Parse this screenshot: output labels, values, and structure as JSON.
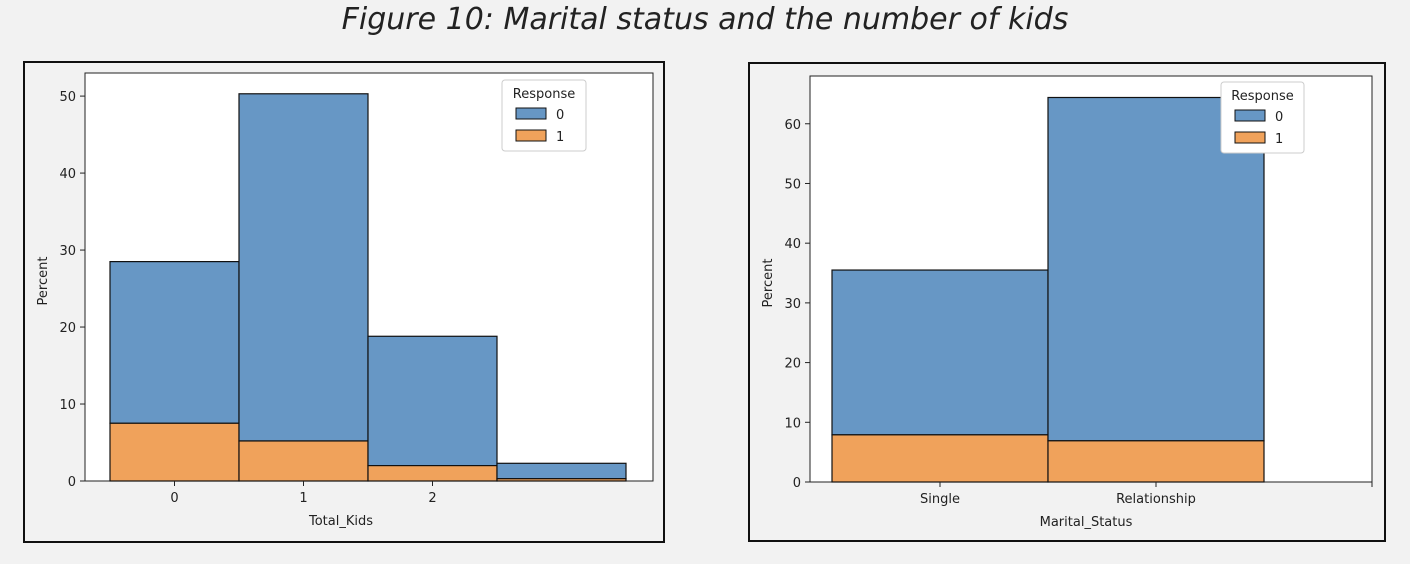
{
  "figure_title": "Figure 10: Marital status and the number of kids",
  "colors": {
    "response_0": "#6797c5",
    "response_1": "#f0a25b",
    "edge": "#111111"
  },
  "chart_data": [
    {
      "type": "bar",
      "stacked": true,
      "xlabel": "Total_Kids",
      "ylabel": "Percent",
      "categories": [
        "0",
        "1",
        "2",
        ""
      ],
      "xticks": [
        "0",
        "1",
        "2"
      ],
      "ylim": [
        0,
        53
      ],
      "yticks": [
        0,
        10,
        20,
        30,
        40,
        50
      ],
      "legend": {
        "title": "Response",
        "placement": "top-right",
        "entries": [
          "0",
          "1"
        ]
      },
      "series": [
        {
          "name": "0",
          "values": [
            21.0,
            45.1,
            16.8,
            2.0
          ]
        },
        {
          "name": "1",
          "values": [
            7.5,
            5.2,
            2.0,
            0.3
          ]
        }
      ],
      "totals": [
        28.5,
        50.3,
        18.8,
        2.3
      ]
    },
    {
      "type": "bar",
      "stacked": true,
      "xlabel": "Marital_Status",
      "ylabel": "Percent",
      "categories": [
        "Single",
        "Relationship"
      ],
      "xticks": [
        "Single",
        "Relationship"
      ],
      "ylim": [
        0,
        68
      ],
      "yticks": [
        0,
        10,
        20,
        30,
        40,
        50,
        60
      ],
      "legend": {
        "title": "Response",
        "placement": "top-right",
        "entries": [
          "0",
          "1"
        ]
      },
      "series": [
        {
          "name": "0",
          "values": [
            27.6,
            57.5
          ]
        },
        {
          "name": "1",
          "values": [
            7.9,
            6.9
          ]
        }
      ],
      "totals": [
        35.5,
        64.4
      ]
    }
  ]
}
